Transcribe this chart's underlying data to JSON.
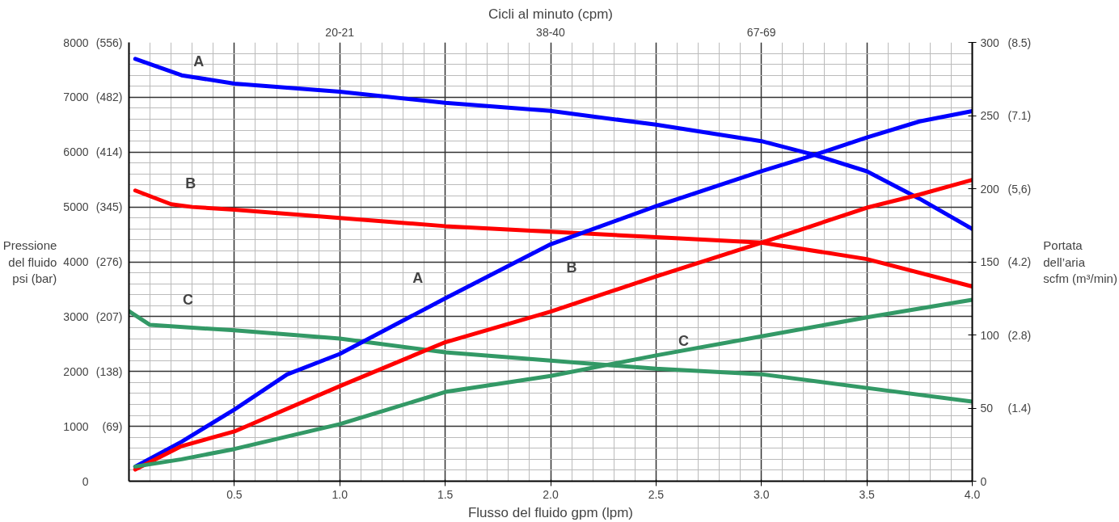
{
  "chart_data": {
    "type": "line",
    "title": "Cicli al minuto (cpm)",
    "xlabel": "Flusso del fluido gpm (lpm)",
    "ylabel": "Pressione\ndel fluido\npsi (bar)",
    "y2label": "Portata\ndell’aria\nscfm (m³/min)",
    "xlim": [
      0,
      4.0
    ],
    "xticks": [
      {
        "value": 0.5,
        "label": "0.5"
      },
      {
        "value": 1.0,
        "label": "1.0"
      },
      {
        "value": 1.5,
        "label": "1.5"
      },
      {
        "value": 2.0,
        "label": "2.0"
      },
      {
        "value": 2.5,
        "label": "2.5"
      },
      {
        "value": 3.0,
        "label": "3.0"
      },
      {
        "value": 3.5,
        "label": "3.5"
      },
      {
        "value": 4.0,
        "label": "4.0"
      }
    ],
    "ylim": [
      0,
      8000
    ],
    "yticks": [
      0,
      1000,
      2000,
      3000,
      4000,
      5000,
      6000,
      7000,
      8000
    ],
    "y2lim": [
      0,
      300
    ],
    "y2ticks": [
      0,
      50,
      100,
      150,
      200,
      250,
      300
    ],
    "grid": true,
    "series": [
      {
        "color": "#0000ff",
        "x": [
          0.03,
          0.25,
          0.5,
          1.0,
          1.5,
          2.0,
          2.5,
          3.0,
          3.25,
          3.5,
          3.75,
          4.0
        ],
        "values": [
          7700,
          7400,
          7250,
          7100,
          6900,
          6750,
          6500,
          6200,
          5950,
          5650,
          5150,
          4600
        ]
      },
      {
        "color": "#ff0000",
        "x": [
          0.03,
          0.2,
          0.3,
          0.5,
          1.0,
          1.5,
          2.0,
          2.5,
          3.0,
          3.5,
          4.0
        ],
        "values": [
          5300,
          5050,
          5000,
          4950,
          4800,
          4650,
          4550,
          4450,
          4350,
          4050,
          3550
        ]
      },
      {
        "color": "#339966",
        "x": [
          0.0,
          0.1,
          0.5,
          1.0,
          1.5,
          2.0,
          2.5,
          3.0,
          3.5,
          4.0
        ],
        "values": [
          3100,
          2850,
          2750,
          2600,
          2350,
          2200,
          2050,
          1950,
          1700,
          1450
        ]
      },
      {
        "color": "#0000ff",
        "axis": "y2",
        "x": [
          0.03,
          0.25,
          0.5,
          0.75,
          1.0,
          1.5,
          2.0,
          2.5,
          3.0,
          3.25,
          3.5,
          3.75,
          4.0
        ],
        "values": [
          10,
          27,
          49,
          73,
          87,
          125,
          162,
          188,
          212,
          223,
          235,
          246,
          253
        ]
      },
      {
        "color": "#ff0000",
        "axis": "y2",
        "x": [
          0.03,
          0.25,
          0.5,
          1.0,
          1.5,
          2.0,
          2.5,
          3.0,
          3.5,
          3.75,
          4.0
        ],
        "values": [
          8,
          24,
          34,
          65,
          95,
          116,
          140,
          163,
          187,
          196,
          206
        ]
      },
      {
        "color": "#339966",
        "axis": "y2",
        "x": [
          0.03,
          0.25,
          0.5,
          1.0,
          1.5,
          2.0,
          2.5,
          3.0,
          3.5,
          4.0
        ],
        "values": [
          10,
          15,
          22,
          39,
          61,
          72,
          86,
          99,
          112,
          124
        ]
      }
    ],
    "annotations": [
      "A",
      "B",
      "C",
      "A",
      "B",
      "C",
      "20-21",
      "38-40",
      "67-69",
      "(69)",
      "(138)",
      "(207)",
      "(276)",
      "(345)",
      "(414)",
      "(482)",
      "(556)",
      "(1.4)",
      "(2.8)",
      "(4.2)",
      "(5,6)",
      "(7.1)",
      "(8.5)"
    ]
  }
}
